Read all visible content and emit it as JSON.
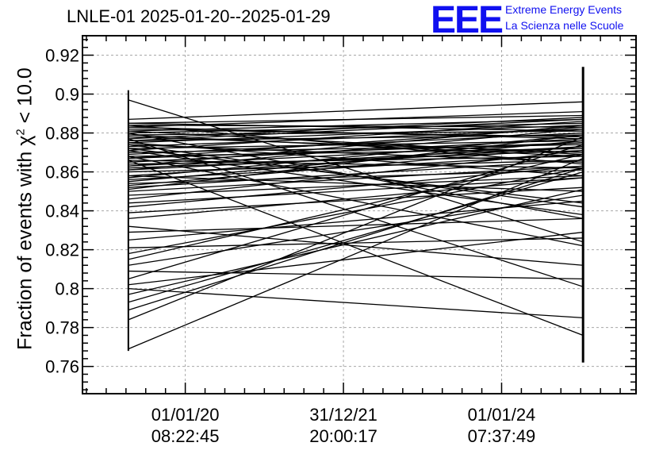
{
  "header": {
    "title": "LNLE-01 2025-01-20--2025-01-29",
    "logo_mark": "EEE",
    "logo_line1": "Extreme Energy Events",
    "logo_line2": "La Scienza nelle Scuole"
  },
  "chart_data": {
    "type": "line",
    "title": "LNLE-01 2025-01-20--2025-01-29",
    "xlabel": "",
    "ylabel_prefix": "Fraction of events with ",
    "ylabel_symbol": "χ",
    "ylabel_sup": "2",
    "ylabel_suffix": " < 10.0",
    "ylim": [
      0.746,
      0.93
    ],
    "yticks": [
      0.76,
      0.78,
      0.8,
      0.82,
      0.84,
      0.86,
      0.88,
      0.9,
      0.92
    ],
    "ytick_labels": [
      "0.76",
      "0.78",
      "0.8",
      "0.82",
      "0.84",
      "0.86",
      "0.88",
      "0.9",
      "0.92"
    ],
    "x_ticks": [
      {
        "date": "01/01/20",
        "time": "08:22:45"
      },
      {
        "date": "31/12/21",
        "time": "20:00:17"
      },
      {
        "date": "01/01/24",
        "time": "07:37:49"
      }
    ],
    "x_tick_values": [
      2020.0,
      2022.0,
      2024.0
    ],
    "xlim": [
      2018.7,
      2025.7
    ],
    "x_start": 2019.28,
    "x_end": 2025.03,
    "grid": true,
    "error_bars": [
      {
        "x": 2019.28,
        "low": 0.768,
        "high": 0.902
      },
      {
        "x": 2025.03,
        "low": 0.762,
        "high": 0.914
      }
    ],
    "segments": [
      [
        0.897,
        0.824
      ],
      [
        0.887,
        0.896
      ],
      [
        0.885,
        0.889
      ],
      [
        0.884,
        0.883
      ],
      [
        0.883,
        0.891
      ],
      [
        0.882,
        0.878
      ],
      [
        0.881,
        0.887
      ],
      [
        0.88,
        0.885
      ],
      [
        0.879,
        0.881
      ],
      [
        0.878,
        0.87
      ],
      [
        0.877,
        0.888
      ],
      [
        0.876,
        0.879
      ],
      [
        0.875,
        0.884
      ],
      [
        0.874,
        0.865
      ],
      [
        0.873,
        0.882
      ],
      [
        0.872,
        0.876
      ],
      [
        0.871,
        0.886
      ],
      [
        0.87,
        0.874
      ],
      [
        0.869,
        0.88
      ],
      [
        0.868,
        0.872
      ],
      [
        0.867,
        0.883
      ],
      [
        0.866,
        0.862
      ],
      [
        0.865,
        0.877
      ],
      [
        0.864,
        0.868
      ],
      [
        0.863,
        0.875
      ],
      [
        0.862,
        0.871
      ],
      [
        0.861,
        0.882
      ],
      [
        0.86,
        0.866
      ],
      [
        0.858,
        0.873
      ],
      [
        0.857,
        0.879
      ],
      [
        0.856,
        0.869
      ],
      [
        0.855,
        0.876
      ],
      [
        0.854,
        0.861
      ],
      [
        0.853,
        0.873
      ],
      [
        0.852,
        0.866
      ],
      [
        0.851,
        0.879
      ],
      [
        0.85,
        0.863
      ],
      [
        0.848,
        0.858
      ],
      [
        0.846,
        0.871
      ],
      [
        0.844,
        0.857
      ],
      [
        0.842,
        0.863
      ],
      [
        0.839,
        0.852
      ],
      [
        0.836,
        0.857
      ],
      [
        0.832,
        0.812
      ],
      [
        0.829,
        0.836
      ],
      [
        0.825,
        0.845
      ],
      [
        0.821,
        0.826
      ],
      [
        0.818,
        0.862
      ],
      [
        0.815,
        0.869
      ],
      [
        0.812,
        0.848
      ],
      [
        0.809,
        0.805
      ],
      [
        0.805,
        0.874
      ],
      [
        0.802,
        0.829
      ],
      [
        0.8,
        0.785
      ],
      [
        0.797,
        0.851
      ],
      [
        0.793,
        0.86
      ],
      [
        0.789,
        0.862
      ],
      [
        0.784,
        0.878
      ],
      [
        0.769,
        0.867
      ],
      [
        0.88,
        0.836
      ],
      [
        0.874,
        0.842
      ],
      [
        0.877,
        0.801
      ],
      [
        0.868,
        0.822
      ],
      [
        0.866,
        0.776
      ],
      [
        0.871,
        0.838
      ],
      [
        0.884,
        0.864
      ],
      [
        0.858,
        0.85
      ],
      [
        0.872,
        0.844
      ],
      [
        0.879,
        0.868
      ],
      [
        0.861,
        0.873
      ],
      [
        0.875,
        0.858
      ],
      [
        0.867,
        0.875
      ],
      [
        0.883,
        0.877
      ],
      [
        0.881,
        0.869
      ],
      [
        0.885,
        0.881
      ],
      [
        0.863,
        0.884
      ],
      [
        0.876,
        0.887
      ]
    ]
  }
}
